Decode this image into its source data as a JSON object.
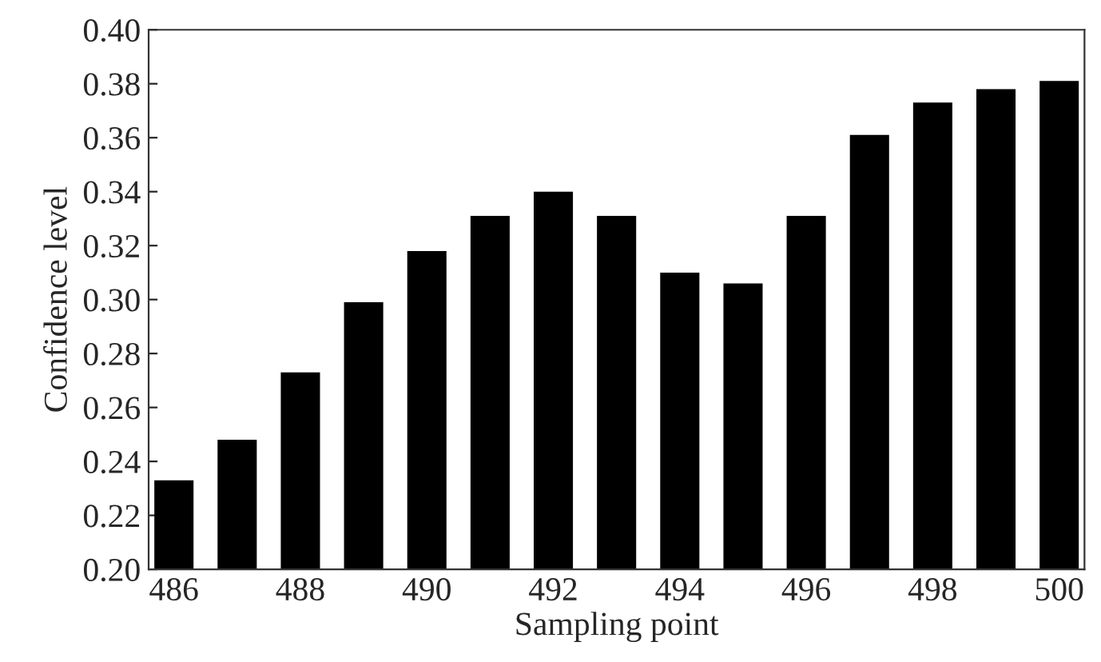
{
  "chart_data": {
    "type": "bar",
    "xlabel": "Sampling point",
    "ylabel": "Confidence level",
    "x": [
      486,
      487,
      488,
      489,
      490,
      491,
      492,
      493,
      494,
      495,
      496,
      497,
      498,
      499,
      500
    ],
    "values": [
      0.233,
      0.248,
      0.273,
      0.299,
      0.318,
      0.331,
      0.34,
      0.331,
      0.31,
      0.306,
      0.331,
      0.361,
      0.373,
      0.378,
      0.381
    ],
    "color": "#000000",
    "xlim": [
      485.6,
      500.4
    ],
    "xticks": [
      486,
      488,
      490,
      492,
      494,
      496,
      498,
      500
    ],
    "ylim": [
      0.2,
      0.4
    ],
    "yticks": [
      {
        "value": 0.2,
        "label": "0.20"
      },
      {
        "value": 0.22,
        "label": "0.22"
      },
      {
        "value": 0.24,
        "label": "0.24"
      },
      {
        "value": 0.26,
        "label": "0.26"
      },
      {
        "value": 0.28,
        "label": "0.28"
      },
      {
        "value": 0.3,
        "label": "0.30"
      },
      {
        "value": 0.32,
        "label": "0.32"
      },
      {
        "value": 0.34,
        "label": "0.34"
      },
      {
        "value": 0.36,
        "label": "0.36"
      },
      {
        "value": 0.38,
        "label": "0.38"
      },
      {
        "value": 0.4,
        "label": "0.40"
      }
    ],
    "grid": false,
    "legend": false
  }
}
